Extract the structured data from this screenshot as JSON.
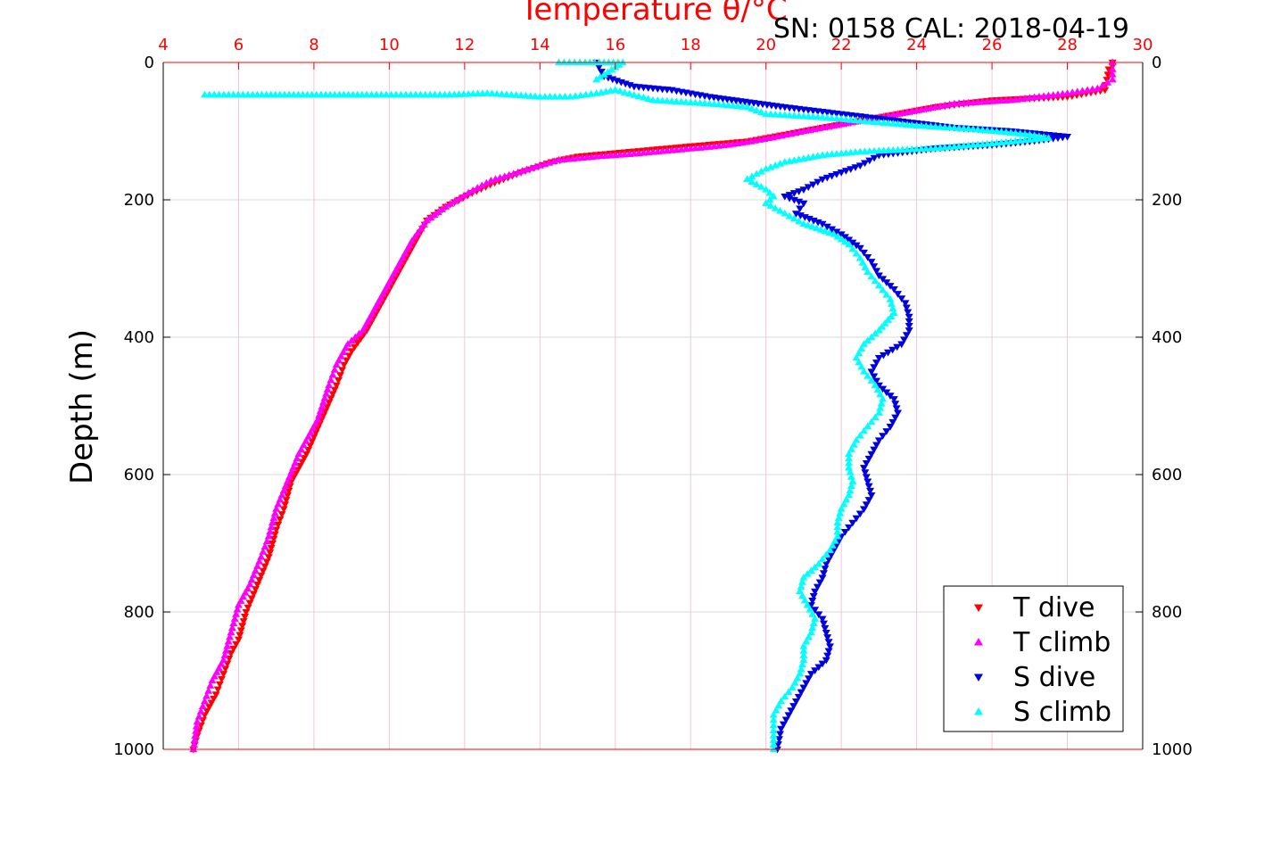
{
  "header": {
    "serial_calibration": "SN: 0158  CAL: 2018-04-19"
  },
  "colors": {
    "t_dive": "#ff0000",
    "t_climb": "#ff00ff",
    "s_dive": "#0000dd",
    "s_climb": "#00ffff",
    "top_axis": "#ff0000",
    "grid": "#d9d9d9"
  },
  "chart_data": {
    "type": "scatter",
    "title": "",
    "xlabel": "Temperature θ/°C",
    "ylabel": "Depth (m)",
    "xlim": [
      4,
      30
    ],
    "ylim": [
      1000,
      0
    ],
    "x_ticks": [
      "4",
      "6",
      "8",
      "10",
      "12",
      "14",
      "16",
      "18",
      "20",
      "22",
      "24",
      "26",
      "28",
      "30"
    ],
    "y_ticks": [
      "0",
      "200",
      "400",
      "600",
      "800",
      "1000"
    ],
    "grid": true,
    "legend_position": "bottom-right",
    "legend": [
      "T dive",
      "T climb",
      "S dive",
      "S climb"
    ],
    "series": [
      {
        "name": "T dive",
        "marker": "triangle-down",
        "color": "#ff0000",
        "points": [
          [
            29.2,
            0
          ],
          [
            29.2,
            5
          ],
          [
            29.1,
            10
          ],
          [
            29.0,
            40
          ],
          [
            28.0,
            50
          ],
          [
            26.0,
            55
          ],
          [
            24.5,
            65
          ],
          [
            23.0,
            80
          ],
          [
            21.5,
            95
          ],
          [
            20.5,
            105
          ],
          [
            19.5,
            115
          ],
          [
            18.0,
            122
          ],
          [
            17.0,
            127
          ],
          [
            16.0,
            132
          ],
          [
            15.0,
            137
          ],
          [
            14.3,
            145
          ],
          [
            13.5,
            160
          ],
          [
            12.8,
            175
          ],
          [
            12.2,
            190
          ],
          [
            11.5,
            210
          ],
          [
            11.0,
            230
          ],
          [
            10.7,
            260
          ],
          [
            10.4,
            290
          ],
          [
            10.0,
            330
          ],
          [
            9.7,
            360
          ],
          [
            9.4,
            390
          ],
          [
            9.0,
            420
          ],
          [
            8.8,
            440
          ],
          [
            8.6,
            470
          ],
          [
            8.2,
            520
          ],
          [
            7.8,
            570
          ],
          [
            7.4,
            610
          ],
          [
            7.2,
            650
          ],
          [
            7.0,
            680
          ],
          [
            6.8,
            720
          ],
          [
            6.5,
            760
          ],
          [
            6.2,
            800
          ],
          [
            6.0,
            840
          ],
          [
            5.8,
            860
          ],
          [
            5.6,
            890
          ],
          [
            5.4,
            920
          ],
          [
            5.1,
            950
          ],
          [
            4.9,
            980
          ],
          [
            4.8,
            1000
          ]
        ]
      },
      {
        "name": "T climb",
        "marker": "triangle-up",
        "color": "#ff00ff",
        "points": [
          [
            29.2,
            0
          ],
          [
            29.2,
            10
          ],
          [
            29.2,
            25
          ],
          [
            28.8,
            38
          ],
          [
            28.0,
            45
          ],
          [
            26.5,
            55
          ],
          [
            25.0,
            60
          ],
          [
            24.0,
            70
          ],
          [
            23.0,
            80
          ],
          [
            22.0,
            90
          ],
          [
            21.0,
            100
          ],
          [
            20.3,
            108
          ],
          [
            19.6,
            115
          ],
          [
            19.0,
            120
          ],
          [
            18.5,
            123
          ],
          [
            17.5,
            128
          ],
          [
            16.5,
            133
          ],
          [
            15.5,
            137
          ],
          [
            14.5,
            142
          ],
          [
            14.0,
            150
          ],
          [
            13.3,
            162
          ],
          [
            12.7,
            172
          ],
          [
            12.1,
            190
          ],
          [
            11.5,
            210
          ],
          [
            11.0,
            230
          ],
          [
            10.6,
            260
          ],
          [
            10.3,
            290
          ],
          [
            10.0,
            320
          ],
          [
            9.6,
            360
          ],
          [
            9.3,
            390
          ],
          [
            8.9,
            410
          ],
          [
            8.6,
            440
          ],
          [
            8.4,
            470
          ],
          [
            8.1,
            520
          ],
          [
            7.6,
            570
          ],
          [
            7.3,
            610
          ],
          [
            7.0,
            650
          ],
          [
            6.8,
            690
          ],
          [
            6.6,
            720
          ],
          [
            6.3,
            760
          ],
          [
            6.0,
            790
          ],
          [
            5.8,
            830
          ],
          [
            5.6,
            870
          ],
          [
            5.3,
            900
          ],
          [
            5.1,
            930
          ],
          [
            4.9,
            960
          ],
          [
            4.8,
            1000
          ]
        ]
      },
      {
        "name": "S dive",
        "marker": "triangle-down",
        "color": "#0000dd",
        "points": [
          [
            15.5,
            0
          ],
          [
            15.7,
            20
          ],
          [
            16.5,
            35
          ],
          [
            17.5,
            40
          ],
          [
            18.5,
            50
          ],
          [
            20.5,
            65
          ],
          [
            22.0,
            75
          ],
          [
            23.5,
            85
          ],
          [
            25.0,
            95
          ],
          [
            26.5,
            100
          ],
          [
            28.0,
            108
          ],
          [
            27.0,
            115
          ],
          [
            26.0,
            120
          ],
          [
            24.5,
            125
          ],
          [
            23.0,
            135
          ],
          [
            22.5,
            150
          ],
          [
            21.5,
            170
          ],
          [
            21.0,
            185
          ],
          [
            20.5,
            195
          ],
          [
            21.0,
            205
          ],
          [
            20.8,
            220
          ],
          [
            21.5,
            235
          ],
          [
            22.0,
            250
          ],
          [
            22.5,
            270
          ],
          [
            22.8,
            290
          ],
          [
            23.0,
            310
          ],
          [
            23.4,
            330
          ],
          [
            23.7,
            350
          ],
          [
            23.8,
            370
          ],
          [
            23.8,
            390
          ],
          [
            23.6,
            410
          ],
          [
            23.0,
            430
          ],
          [
            22.8,
            450
          ],
          [
            23.0,
            470
          ],
          [
            23.4,
            490
          ],
          [
            23.5,
            510
          ],
          [
            23.3,
            530
          ],
          [
            23.0,
            550
          ],
          [
            22.8,
            570
          ],
          [
            22.6,
            590
          ],
          [
            22.7,
            610
          ],
          [
            22.8,
            630
          ],
          [
            22.6,
            650
          ],
          [
            22.3,
            670
          ],
          [
            22.0,
            690
          ],
          [
            21.8,
            710
          ],
          [
            21.6,
            730
          ],
          [
            21.5,
            750
          ],
          [
            21.3,
            770
          ],
          [
            21.2,
            790
          ],
          [
            21.5,
            810
          ],
          [
            21.6,
            830
          ],
          [
            21.7,
            850
          ],
          [
            21.6,
            870
          ],
          [
            21.2,
            890
          ],
          [
            21.0,
            910
          ],
          [
            20.8,
            930
          ],
          [
            20.6,
            950
          ],
          [
            20.4,
            970
          ],
          [
            20.3,
            1000
          ]
        ]
      },
      {
        "name": "S climb",
        "marker": "triangle-up",
        "color": "#00ffff",
        "points": [
          [
            14.5,
            0
          ],
          [
            15.2,
            0
          ],
          [
            16.2,
            0
          ],
          [
            15.5,
            25
          ],
          [
            5.1,
            47
          ],
          [
            6.5,
            47
          ],
          [
            7.1,
            47
          ],
          [
            9.4,
            47
          ],
          [
            10.7,
            47
          ],
          [
            11.6,
            47
          ],
          [
            12.6,
            45
          ],
          [
            13.5,
            48
          ],
          [
            14.0,
            50
          ],
          [
            14.8,
            50
          ],
          [
            15.5,
            45
          ],
          [
            16.0,
            40
          ],
          [
            17.0,
            55
          ],
          [
            18.5,
            60
          ],
          [
            19.5,
            65
          ],
          [
            20.0,
            75
          ],
          [
            21.5,
            80
          ],
          [
            22.5,
            85
          ],
          [
            24.0,
            92
          ],
          [
            25.5,
            97
          ],
          [
            27.0,
            105
          ],
          [
            27.5,
            110
          ],
          [
            26.0,
            118
          ],
          [
            24.5,
            125
          ],
          [
            22.5,
            130
          ],
          [
            21.5,
            135
          ],
          [
            20.5,
            145
          ],
          [
            20.0,
            155
          ],
          [
            19.5,
            170
          ],
          [
            20.0,
            185
          ],
          [
            20.2,
            195
          ],
          [
            20.0,
            205
          ],
          [
            20.5,
            220
          ],
          [
            21.0,
            235
          ],
          [
            21.8,
            250
          ],
          [
            22.2,
            265
          ],
          [
            22.5,
            285
          ],
          [
            22.7,
            305
          ],
          [
            23.0,
            325
          ],
          [
            23.3,
            345
          ],
          [
            23.4,
            365
          ],
          [
            23.0,
            390
          ],
          [
            22.6,
            410
          ],
          [
            22.4,
            430
          ],
          [
            22.6,
            450
          ],
          [
            22.9,
            470
          ],
          [
            23.1,
            490
          ],
          [
            23.0,
            510
          ],
          [
            22.7,
            530
          ],
          [
            22.4,
            550
          ],
          [
            22.2,
            570
          ],
          [
            22.2,
            590
          ],
          [
            22.3,
            610
          ],
          [
            22.2,
            630
          ],
          [
            22.0,
            650
          ],
          [
            21.9,
            670
          ],
          [
            21.9,
            690
          ],
          [
            21.7,
            710
          ],
          [
            21.4,
            730
          ],
          [
            21.0,
            750
          ],
          [
            20.9,
            770
          ],
          [
            21.1,
            790
          ],
          [
            21.3,
            810
          ],
          [
            21.2,
            830
          ],
          [
            21.0,
            850
          ],
          [
            21.0,
            870
          ],
          [
            20.9,
            890
          ],
          [
            20.7,
            910
          ],
          [
            20.4,
            930
          ],
          [
            20.2,
            950
          ],
          [
            20.2,
            980
          ],
          [
            20.2,
            1000
          ]
        ]
      }
    ]
  }
}
